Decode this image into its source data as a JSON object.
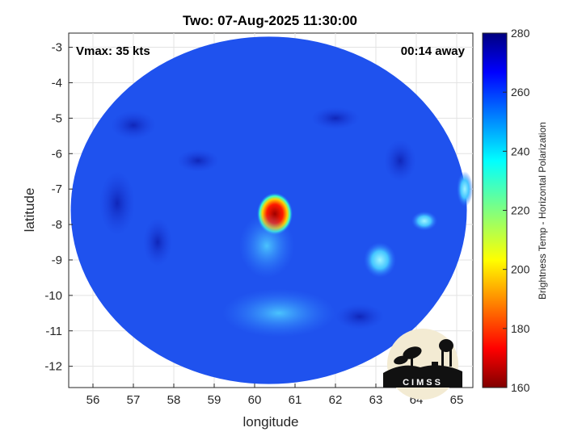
{
  "chart_data": {
    "type": "heatmap",
    "title": "Two: 07-Aug-2025 11:30:00",
    "annotations": {
      "vmax": "Vmax: 35 kts",
      "away": "00:14 away"
    },
    "xlabel": "longitude",
    "ylabel": "latitude",
    "xlim": [
      55.4,
      65.4
    ],
    "ylim": [
      -12.6,
      -2.6
    ],
    "xticks": [
      56,
      57,
      58,
      59,
      60,
      61,
      62,
      63,
      64,
      65
    ],
    "yticks": [
      -3,
      -4,
      -5,
      -6,
      -7,
      -8,
      -9,
      -10,
      -11,
      -12
    ],
    "grid": true,
    "swath": {
      "center": [
        60.35,
        -7.6
      ],
      "radius_deg": 4.9
    },
    "features": [
      {
        "name": "core",
        "lon": 60.5,
        "lat": -7.7,
        "value": 170
      },
      {
        "name": "inner band",
        "lon": 60.3,
        "lat": -8.6,
        "value": 238
      },
      {
        "name": "south band",
        "lon": 60.6,
        "lat": -10.5,
        "value": 242
      },
      {
        "name": "east cells",
        "lon": 63.1,
        "lat": -9.0,
        "value": 232
      },
      {
        "name": "east cells 2",
        "lon": 64.2,
        "lat": -7.9,
        "value": 228
      },
      {
        "name": "edge cells",
        "lon": 65.2,
        "lat": -7.0,
        "value": 235
      },
      {
        "name": "background",
        "lon": 58.5,
        "lat": -6.0,
        "value": 262
      }
    ],
    "colorbar": {
      "label": "Brightness Temp - Horizontal Polarization",
      "min": 160,
      "max": 280,
      "ticks": [
        160,
        180,
        200,
        220,
        240,
        260,
        280
      ],
      "colormap": "jet"
    },
    "logo": "CIMSS"
  }
}
